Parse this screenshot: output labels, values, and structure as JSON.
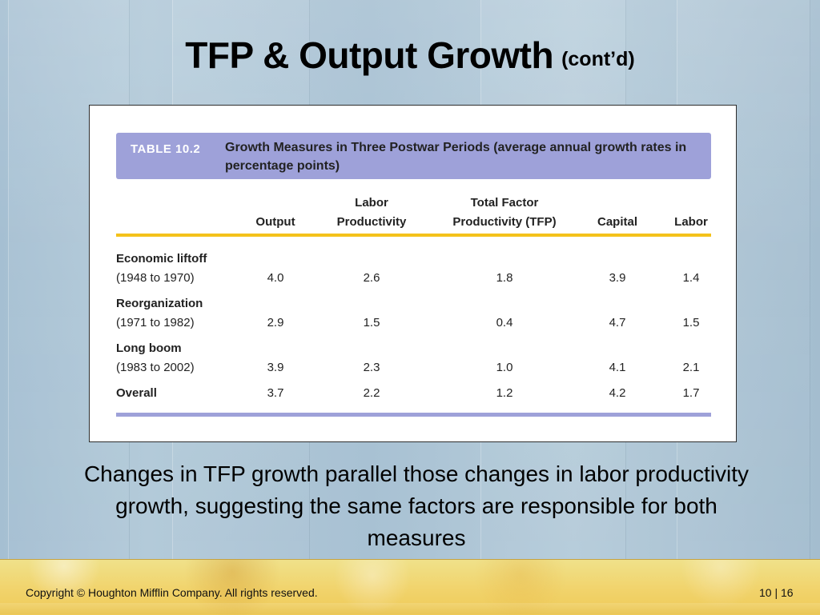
{
  "slide": {
    "title": "TFP & Output Growth",
    "title_suffix": "(cont’d)",
    "body_text": "Changes in TFP growth parallel those changes in labor productivity growth, suggesting the same factors are responsible for both measures",
    "footer": {
      "copyright": "Copyright © Houghton Mifflin Company.  All rights reserved.",
      "page": "10 | 16"
    },
    "colors": {
      "table_header_bg": "#9ea1d9",
      "table_rule_yellow": "#f4c21a",
      "footer_bg": "#f1d36b"
    }
  },
  "table": {
    "tag": "TABLE 10.2",
    "caption": "Growth Measures in Three Postwar Periods (average annual growth rates in percentage points)",
    "columns": [
      {
        "line1": "",
        "line2": "Output"
      },
      {
        "line1": "Labor",
        "line2": "Productivity"
      },
      {
        "line1": "Total Factor",
        "line2": "Productivity (TFP)"
      },
      {
        "line1": "",
        "line2": "Capital"
      },
      {
        "line1": "",
        "line2": "Labor"
      }
    ],
    "rows": [
      {
        "label": "Economic liftoff",
        "sublabel": "(1948 to 1970)",
        "values": [
          "4.0",
          "2.6",
          "1.8",
          "3.9",
          "1.4"
        ]
      },
      {
        "label": "Reorganization",
        "sublabel": "(1971 to 1982)",
        "values": [
          "2.9",
          "1.5",
          "0.4",
          "4.7",
          "1.5"
        ]
      },
      {
        "label": "Long boom",
        "sublabel": "(1983 to 2002)",
        "values": [
          "3.9",
          "2.3",
          "1.0",
          "4.1",
          "2.1"
        ]
      },
      {
        "label": "Overall",
        "sublabel": "",
        "values": [
          "3.7",
          "2.2",
          "1.2",
          "4.2",
          "1.7"
        ]
      }
    ]
  }
}
